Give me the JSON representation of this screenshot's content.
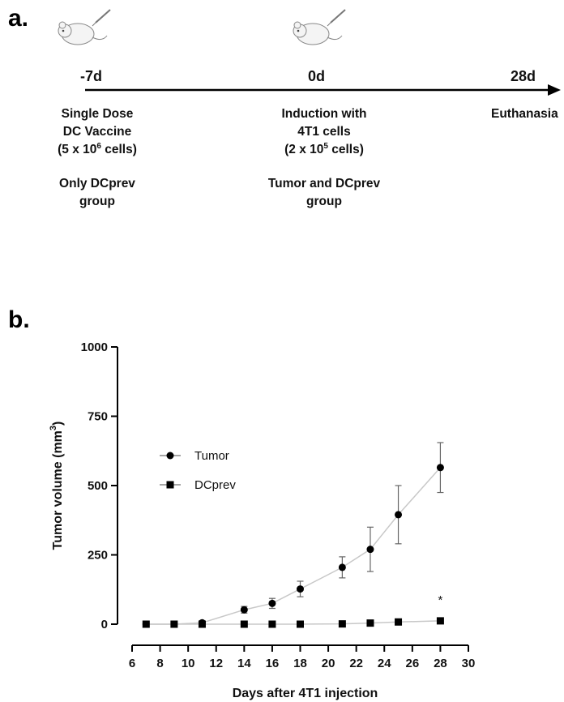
{
  "panel_a": {
    "label": "a.",
    "timepoints": [
      "-7d",
      "0d",
      "28d"
    ],
    "events": [
      {
        "lines": [
          "Single Dose",
          "DC Vaccine",
          "(5 x 10",
          "6",
          " cells)"
        ],
        "group": [
          "Only  DCprev",
          "group"
        ]
      },
      {
        "lines": [
          "Induction with",
          "4T1 cells",
          "(2 x 10",
          "5",
          " cells)"
        ],
        "group": [
          "Tumor and  DCprev",
          "group"
        ]
      },
      {
        "lines": [
          "Euthanasia"
        ]
      }
    ]
  },
  "panel_b": {
    "label": "b."
  },
  "chart_data": {
    "type": "line",
    "xlabel": "Days after 4T1 injection",
    "ylabel": "Tumor volume (mm3)",
    "ylabel_main": "Tumor volume (mm",
    "ylabel_sup": "3",
    "ylabel_close": ")",
    "xlim": [
      6,
      30
    ],
    "ylim": [
      0,
      1000
    ],
    "xticks": [
      6,
      8,
      10,
      12,
      14,
      16,
      18,
      20,
      22,
      24,
      26,
      28,
      30
    ],
    "yticks": [
      0,
      250,
      500,
      750,
      1000
    ],
    "legend_position": "middle-left",
    "series": [
      {
        "name": "Tumor",
        "marker": "circle",
        "x": [
          7,
          9,
          11,
          14,
          16,
          18,
          21,
          23,
          25,
          28
        ],
        "y": [
          0,
          0,
          5,
          52,
          75,
          127,
          205,
          270,
          395,
          565
        ],
        "err": [
          0,
          0,
          3,
          12,
          18,
          28,
          38,
          80,
          105,
          90
        ]
      },
      {
        "name": "DCprev",
        "marker": "square",
        "x": [
          7,
          9,
          11,
          14,
          16,
          18,
          21,
          23,
          25,
          28
        ],
        "y": [
          0,
          0,
          0,
          0,
          0,
          0,
          1,
          4,
          8,
          12
        ],
        "err": [
          0,
          0,
          0,
          0,
          0,
          0,
          0,
          0,
          0,
          0
        ]
      }
    ],
    "annotations": [
      {
        "text": "*",
        "x": 28
      }
    ]
  }
}
